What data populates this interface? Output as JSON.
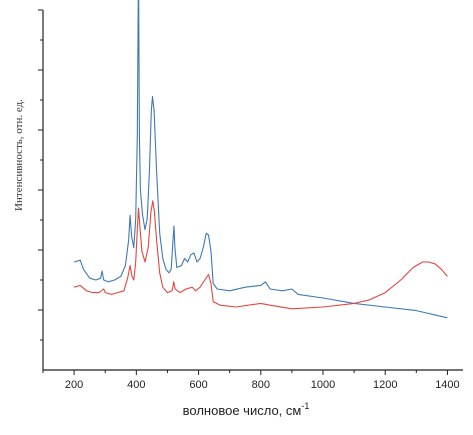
{
  "chart_data": {
    "type": "line",
    "title": "",
    "xlabel": "волновое число, см",
    "xlabel_sup": "-1",
    "ylabel": "Интенсивность, отн. ед.",
    "xlim": [
      100,
      1450
    ],
    "ylim": [
      0,
      10
    ],
    "xticks": [
      200,
      400,
      600,
      800,
      1000,
      1200,
      1400
    ],
    "ytick_count": 6,
    "y_tick_labels_shown": false,
    "grid": false,
    "legend": "none",
    "series": [
      {
        "color": "#3f78b8",
        "points": [
          [
            200,
            3.0
          ],
          [
            220,
            3.05
          ],
          [
            230,
            2.8
          ],
          [
            250,
            2.55
          ],
          [
            270,
            2.5
          ],
          [
            285,
            2.55
          ],
          [
            290,
            2.75
          ],
          [
            295,
            2.5
          ],
          [
            310,
            2.45
          ],
          [
            330,
            2.5
          ],
          [
            350,
            2.6
          ],
          [
            365,
            2.9
          ],
          [
            375,
            3.6
          ],
          [
            380,
            4.3
          ],
          [
            385,
            3.7
          ],
          [
            392,
            3.4
          ],
          [
            398,
            4.2
          ],
          [
            403,
            6.5
          ],
          [
            407,
            11.35
          ],
          [
            410,
            6.5
          ],
          [
            413,
            5.0
          ],
          [
            420,
            4.3
          ],
          [
            428,
            3.9
          ],
          [
            435,
            4.2
          ],
          [
            442,
            5.5
          ],
          [
            448,
            7.2
          ],
          [
            452,
            7.6
          ],
          [
            457,
            7.2
          ],
          [
            465,
            5.5
          ],
          [
            475,
            3.8
          ],
          [
            485,
            3.1
          ],
          [
            495,
            2.8
          ],
          [
            505,
            2.7
          ],
          [
            512,
            2.8
          ],
          [
            518,
            3.6
          ],
          [
            521,
            4.0
          ],
          [
            524,
            3.4
          ],
          [
            530,
            2.85
          ],
          [
            545,
            2.9
          ],
          [
            555,
            3.1
          ],
          [
            565,
            3.0
          ],
          [
            575,
            3.2
          ],
          [
            585,
            3.25
          ],
          [
            595,
            3.0
          ],
          [
            605,
            3.1
          ],
          [
            615,
            3.4
          ],
          [
            625,
            3.8
          ],
          [
            632,
            3.75
          ],
          [
            640,
            3.3
          ],
          [
            647,
            2.4
          ],
          [
            660,
            2.25
          ],
          [
            700,
            2.2
          ],
          [
            750,
            2.3
          ],
          [
            800,
            2.35
          ],
          [
            815,
            2.45
          ],
          [
            830,
            2.25
          ],
          [
            870,
            2.2
          ],
          [
            900,
            2.25
          ],
          [
            920,
            2.1
          ],
          [
            1000,
            2.0
          ],
          [
            1100,
            1.85
          ],
          [
            1200,
            1.75
          ],
          [
            1300,
            1.65
          ],
          [
            1400,
            1.45
          ]
        ]
      },
      {
        "color": "#e5453d",
        "points": [
          [
            200,
            2.3
          ],
          [
            220,
            2.35
          ],
          [
            240,
            2.2
          ],
          [
            260,
            2.15
          ],
          [
            280,
            2.15
          ],
          [
            295,
            2.25
          ],
          [
            300,
            2.15
          ],
          [
            320,
            2.1
          ],
          [
            340,
            2.15
          ],
          [
            360,
            2.2
          ],
          [
            372,
            2.55
          ],
          [
            380,
            2.9
          ],
          [
            386,
            2.6
          ],
          [
            392,
            2.5
          ],
          [
            398,
            3.0
          ],
          [
            403,
            3.9
          ],
          [
            407,
            4.5
          ],
          [
            412,
            3.9
          ],
          [
            418,
            3.3
          ],
          [
            428,
            3.0
          ],
          [
            438,
            3.4
          ],
          [
            447,
            4.4
          ],
          [
            453,
            4.7
          ],
          [
            458,
            4.4
          ],
          [
            465,
            3.6
          ],
          [
            475,
            2.7
          ],
          [
            485,
            2.3
          ],
          [
            500,
            2.15
          ],
          [
            515,
            2.2
          ],
          [
            520,
            2.45
          ],
          [
            525,
            2.25
          ],
          [
            540,
            2.15
          ],
          [
            560,
            2.25
          ],
          [
            580,
            2.3
          ],
          [
            590,
            2.2
          ],
          [
            605,
            2.3
          ],
          [
            620,
            2.5
          ],
          [
            632,
            2.65
          ],
          [
            640,
            2.4
          ],
          [
            647,
            1.9
          ],
          [
            670,
            1.8
          ],
          [
            720,
            1.75
          ],
          [
            800,
            1.85
          ],
          [
            830,
            1.8
          ],
          [
            900,
            1.7
          ],
          [
            1000,
            1.75
          ],
          [
            1100,
            1.85
          ],
          [
            1150,
            1.95
          ],
          [
            1200,
            2.15
          ],
          [
            1250,
            2.5
          ],
          [
            1290,
            2.85
          ],
          [
            1320,
            3.0
          ],
          [
            1340,
            3.0
          ],
          [
            1360,
            2.95
          ],
          [
            1380,
            2.8
          ],
          [
            1400,
            2.6
          ]
        ]
      }
    ]
  }
}
